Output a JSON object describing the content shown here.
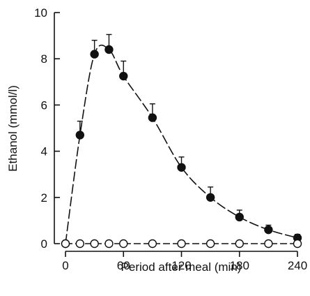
{
  "chart_data": {
    "type": "line",
    "title": "",
    "xlabel": "Period after meal (min)",
    "ylabel": "Ethanol (mmol/l)",
    "xlim": [
      0,
      240
    ],
    "ylim": [
      0,
      10
    ],
    "x_ticks": [
      "0",
      "60",
      "120",
      "180",
      "240"
    ],
    "x_tick_values": [
      0,
      60,
      120,
      180,
      240
    ],
    "y_ticks": [
      "0",
      "2",
      "4",
      "6",
      "8",
      "10"
    ],
    "y_tick_values": [
      0,
      2,
      4,
      6,
      8,
      10
    ],
    "grid": false,
    "legend": "none",
    "series": [
      {
        "marker": "filled-circle",
        "line_style": "dashed",
        "x": [
          0,
          15,
          30,
          45,
          60,
          90,
          120,
          150,
          180,
          210,
          240
        ],
        "y": [
          0,
          4.7,
          8.2,
          8.4,
          7.25,
          5.45,
          3.3,
          2.0,
          1.15,
          0.6,
          0.25
        ],
        "error_upper": [
          0,
          0.6,
          0.6,
          0.65,
          0.65,
          0.6,
          0.45,
          0.45,
          0.3,
          0.2,
          0.15
        ]
      },
      {
        "marker": "open-circle",
        "line_style": "dashed",
        "x": [
          0,
          15,
          30,
          45,
          60,
          90,
          120,
          150,
          180,
          210,
          240
        ],
        "y": [
          0,
          0,
          0,
          0,
          0,
          0,
          0,
          0,
          0,
          0,
          0
        ]
      }
    ],
    "colors": {
      "ink": "#111111",
      "background": "#ffffff"
    }
  }
}
